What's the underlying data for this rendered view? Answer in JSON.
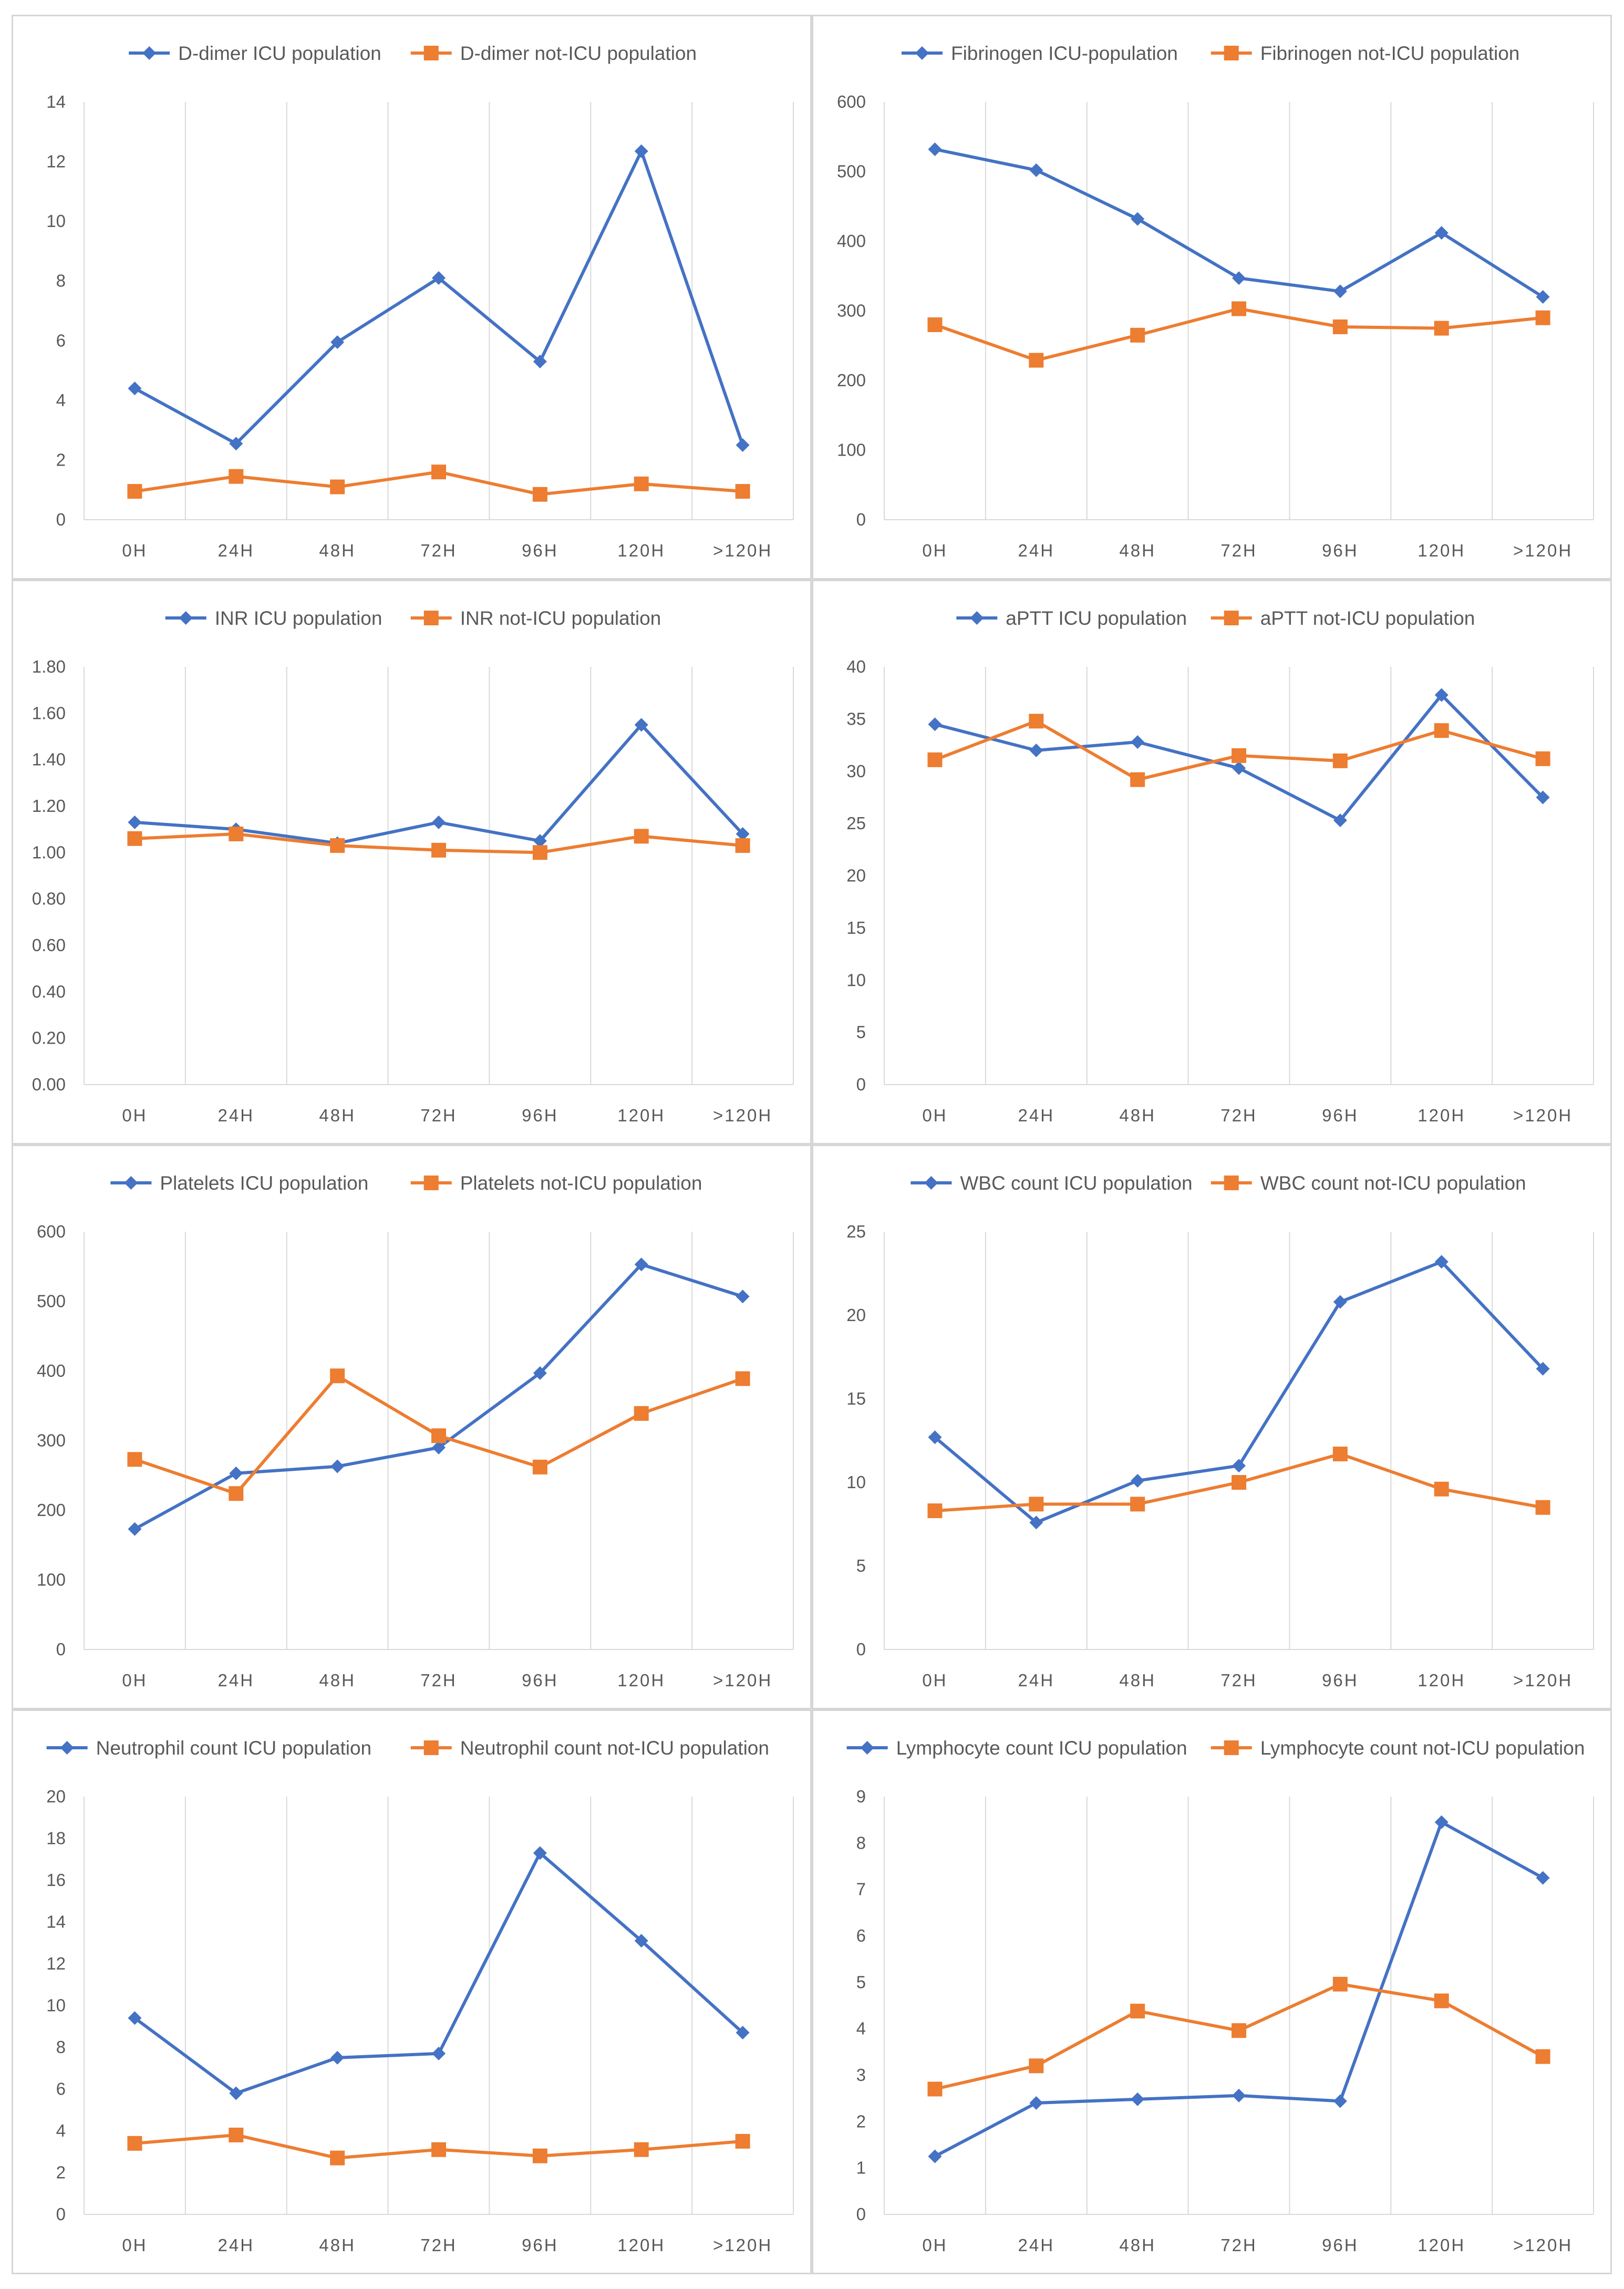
{
  "colors": {
    "icu": "#4472C4",
    "not_icu": "#ED7D31",
    "grid": "#D9D9D9",
    "text": "#595959"
  },
  "chart_data": [
    {
      "type": "line",
      "title": "",
      "categories": [
        "0H",
        "24H",
        "48H",
        "72H",
        "96H",
        "120H",
        ">120H"
      ],
      "ylim": [
        0,
        14
      ],
      "ystep": 2,
      "ydecimals": 0,
      "series": [
        {
          "name": "D-dimer ICU population",
          "marker": "diamond",
          "values": [
            4.4,
            2.55,
            5.95,
            8.1,
            5.3,
            12.35,
            2.5
          ]
        },
        {
          "name": "D-dimer not-ICU population",
          "marker": "square",
          "values": [
            0.95,
            1.45,
            1.1,
            1.6,
            0.85,
            1.2,
            0.95
          ]
        }
      ]
    },
    {
      "type": "line",
      "title": "",
      "categories": [
        "0H",
        "24H",
        "48H",
        "72H",
        "96H",
        "120H",
        ">120H"
      ],
      "ylim": [
        0,
        600
      ],
      "ystep": 100,
      "ydecimals": 0,
      "series": [
        {
          "name": "Fibrinogen ICU-population",
          "marker": "diamond",
          "values": [
            532,
            502,
            432,
            347,
            328,
            412,
            320
          ]
        },
        {
          "name": "Fibrinogen not-ICU population",
          "marker": "square",
          "values": [
            280,
            229,
            265,
            303,
            277,
            275,
            290
          ]
        }
      ]
    },
    {
      "type": "line",
      "title": "",
      "categories": [
        "0H",
        "24H",
        "48H",
        "72H",
        "96H",
        "120H",
        ">120H"
      ],
      "ylim": [
        0,
        1.8
      ],
      "ystep": 0.2,
      "ydecimals": 2,
      "series": [
        {
          "name": "INR ICU population",
          "marker": "diamond",
          "values": [
            1.13,
            1.1,
            1.04,
            1.13,
            1.05,
            1.55,
            1.08
          ]
        },
        {
          "name": "INR not-ICU population",
          "marker": "square",
          "values": [
            1.06,
            1.08,
            1.03,
            1.01,
            1.0,
            1.07,
            1.03
          ]
        }
      ]
    },
    {
      "type": "line",
      "title": "",
      "categories": [
        "0H",
        "24H",
        "48H",
        "72H",
        "96H",
        "120H",
        ">120H"
      ],
      "ylim": [
        0,
        40
      ],
      "ystep": 5,
      "ydecimals": 0,
      "series": [
        {
          "name": "aPTT ICU population",
          "marker": "diamond",
          "values": [
            34.5,
            32.0,
            32.8,
            30.3,
            25.3,
            37.3,
            27.5
          ]
        },
        {
          "name": "aPTT not-ICU population",
          "marker": "square",
          "values": [
            31.1,
            34.8,
            29.2,
            31.5,
            31.0,
            33.9,
            31.2
          ]
        }
      ]
    },
    {
      "type": "line",
      "title": "",
      "categories": [
        "0H",
        "24H",
        "48H",
        "72H",
        "96H",
        "120H",
        ">120H"
      ],
      "ylim": [
        0,
        600
      ],
      "ystep": 100,
      "ydecimals": 0,
      "series": [
        {
          "name": "Platelets ICU population",
          "marker": "diamond",
          "values": [
            173,
            253,
            263,
            290,
            397,
            553,
            507
          ]
        },
        {
          "name": "Platelets not-ICU population",
          "marker": "square",
          "values": [
            273,
            224,
            393,
            307,
            262,
            339,
            389
          ]
        }
      ]
    },
    {
      "type": "line",
      "title": "",
      "categories": [
        "0H",
        "24H",
        "48H",
        "72H",
        "96H",
        "120H",
        ">120H"
      ],
      "ylim": [
        0,
        25
      ],
      "ystep": 5,
      "ydecimals": 0,
      "series": [
        {
          "name": "WBC count ICU population",
          "marker": "diamond",
          "values": [
            12.7,
            7.6,
            10.1,
            11.0,
            20.8,
            23.2,
            16.8
          ]
        },
        {
          "name": "WBC count not-ICU population",
          "marker": "square",
          "values": [
            8.3,
            8.7,
            8.7,
            10.0,
            11.7,
            9.6,
            8.5
          ]
        }
      ]
    },
    {
      "type": "line",
      "title": "",
      "categories": [
        "0H",
        "24H",
        "48H",
        "72H",
        "96H",
        "120H",
        ">120H"
      ],
      "ylim": [
        0,
        20
      ],
      "ystep": 2,
      "ydecimals": 0,
      "series": [
        {
          "name": "Neutrophil count ICU population",
          "marker": "diamond",
          "values": [
            9.4,
            5.8,
            7.5,
            7.7,
            17.3,
            13.1,
            8.7
          ]
        },
        {
          "name": "Neutrophil count not-ICU population",
          "marker": "square",
          "values": [
            3.4,
            3.8,
            2.7,
            3.1,
            2.8,
            3.1,
            3.5
          ]
        }
      ]
    },
    {
      "type": "line",
      "title": "",
      "categories": [
        "0H",
        "24H",
        "48H",
        "72H",
        "96H",
        "120H",
        ">120H"
      ],
      "ylim": [
        0,
        9
      ],
      "ystep": 1,
      "ydecimals": 0,
      "series": [
        {
          "name": "Lymphocyte count ICU population",
          "marker": "diamond",
          "values": [
            1.25,
            2.4,
            2.48,
            2.56,
            2.44,
            8.45,
            7.25
          ]
        },
        {
          "name": "Lymphocyte count not-ICU population",
          "marker": "square",
          "values": [
            2.7,
            3.2,
            4.38,
            3.96,
            4.96,
            4.6,
            3.4
          ]
        }
      ]
    }
  ]
}
